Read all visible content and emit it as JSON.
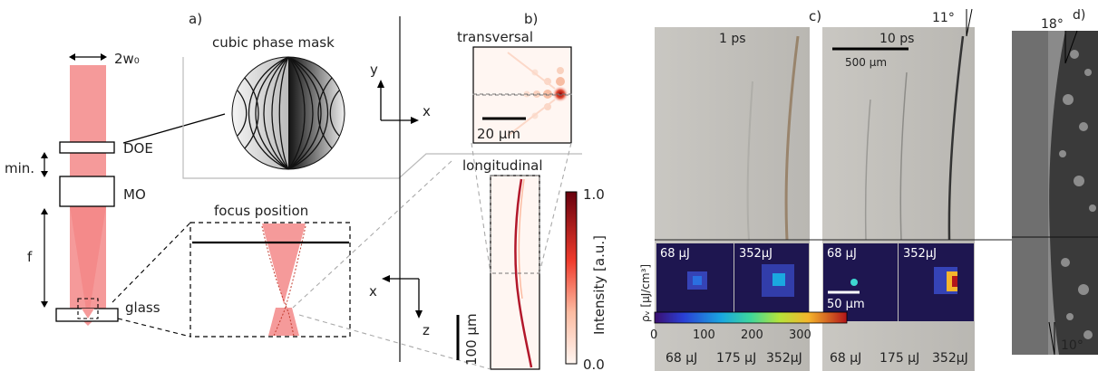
{
  "panel_labels": {
    "a": "a)",
    "b": "b)",
    "c": "c)",
    "d": "d)"
  },
  "panel_a": {
    "beam_width_label": "2w₀",
    "doe_label": "DOE",
    "mo_label": "MO",
    "min_label": "min.",
    "f_label": "f",
    "glass_label": "glass",
    "cubic_phase_mask_title": "cubic phase mask",
    "focus_position_title": "focus position",
    "beam_color": "#f59a9a"
  },
  "panel_b": {
    "transversal_title": "transversal",
    "longitudinal_title": "longitudinal",
    "axis_y": "y",
    "axis_x_top": "x",
    "axis_x_bottom": "x",
    "axis_z": "z",
    "scalebar_transversal": "20 µm",
    "scalebar_longitudinal": "100 µm",
    "colorbar_label": "Intensity [a.u.]",
    "colorbar_max": "1.0",
    "colorbar_min": "0.0"
  },
  "panel_c": {
    "time_left": "1 ps",
    "time_right": "10 ps",
    "scalebar_top": "500 µm",
    "angle": "11°",
    "energies_left": [
      "68 µJ",
      "352µJ"
    ],
    "energies_right": [
      "68 µJ",
      "352µJ"
    ],
    "scalebar_inset": "50 µm",
    "density_label": "ρᵥ [µJ/cm³]",
    "colorbar_ticks": [
      "0",
      "100",
      "200",
      "300"
    ],
    "bottom_left": [
      "68 µJ",
      "175 µJ",
      "352µJ"
    ],
    "bottom_right": [
      "68 µJ",
      "175 µJ",
      "352µJ"
    ]
  },
  "panel_d": {
    "angle_top": "18°",
    "angle_bottom": "10°"
  }
}
